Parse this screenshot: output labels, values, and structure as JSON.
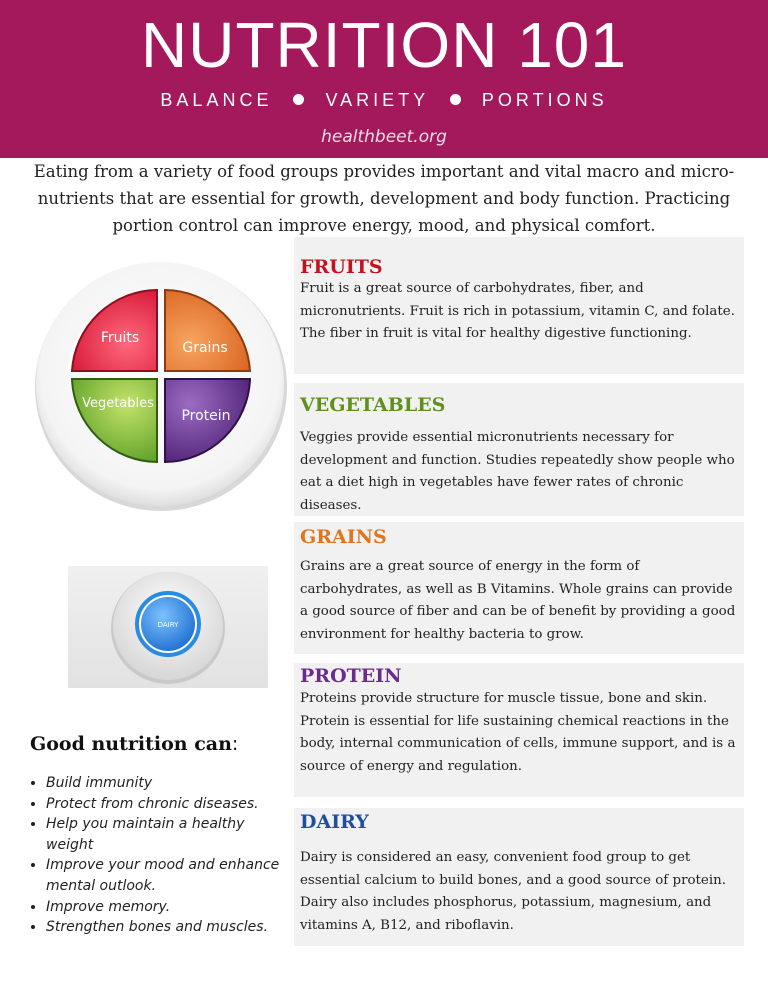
{
  "header": {
    "title": "NUTRITION 101",
    "subtitle_parts": [
      "BALANCE",
      "VARIETY",
      "PORTIONS"
    ],
    "website": "healthbeet.org",
    "color": "#a3195b"
  },
  "intro": "Eating from a variety of food groups provides important and vital macro and micro-nutrients that are essential for growth, development and body function.  Practicing portion control can improve energy, mood, and physical comfort.",
  "plate": {
    "sections": [
      "Fruits",
      "Grains",
      "Vegetables",
      "Protein"
    ],
    "colors": {
      "fruits": "#e0223f",
      "grains": "#e26d26",
      "vegetables": "#74b72e",
      "protein": "#6a3590"
    }
  },
  "bowl": {
    "label": "DAIRY",
    "color": "#2a8be3"
  },
  "groups": [
    {
      "title": "FRUITS",
      "color": "#c0141f",
      "text": "Fruit is a great source of carbohydrates, fiber, and micronutrients.  Fruit is rich in potassium, vitamin C, and folate.  The fiber in fruit is vital for healthy digestive functioning."
    },
    {
      "title": "VEGETABLES",
      "color": "#5f8f1c",
      "text": "Veggies provide essential micronutrients necessary for development and function.   Studies repeatedly show people who eat a diet high in vegetables have fewer rates of chronic diseases."
    },
    {
      "title": "GRAINS",
      "color": "#e0741f",
      "text": "Grains are a great source of energy in the form of carbohydrates, as well as B Vitamins.  Whole grains can provide a good source of fiber and can be of benefit by providing a good environment for healthy bacteria to grow."
    },
    {
      "title": "PROTEIN",
      "color": "#6b2a8c",
      "text": "Proteins provide structure for muscle tissue, bone and skin. Protein is essential for life sustaining chemical reactions in the body, internal communication of cells,  immune support, and is a source of energy and regulation."
    },
    {
      "title": "DAIRY",
      "color": "#1f4ea1",
      "text": "Dairy is considered an easy, convenient food group to get essential calcium to build bones, and a good source of protein.  Dairy also includes phosphorus, potassium, magnesium, and vitamins A, B12, and riboflavin."
    }
  ],
  "good_nutrition": {
    "title": "Good nutrition can",
    "colon": ":",
    "items": [
      "Build immunity",
      "Protect from chronic diseases.",
      "Help you maintain a healthy weight",
      "Improve your mood and enhance mental outlook.",
      "Improve memory.",
      "Strengthen bones and muscles."
    ]
  }
}
